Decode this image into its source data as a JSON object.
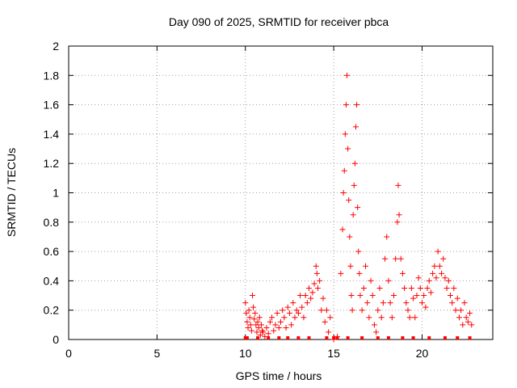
{
  "chart_data": {
    "type": "scatter",
    "title": "Day 090 of 2025, SRMTID for receiver pbca",
    "xlabel": "GPS time / hours",
    "ylabel": "SRMTID / TECUs",
    "xlim": [
      0,
      24
    ],
    "ylim": [
      0,
      2
    ],
    "xticks": [
      "0",
      "5",
      "10",
      "15",
      "20"
    ],
    "yticks": [
      "0",
      "0.2",
      "0.4",
      "0.6",
      "0.8",
      "1",
      "1.2",
      "1.4",
      "1.6",
      "1.8",
      "2"
    ],
    "grid": true,
    "marker": "+",
    "color": "#ff0000",
    "series": [
      {
        "name": "pbca",
        "points": [
          [
            10.0,
            0.25
          ],
          [
            10.05,
            0.18
          ],
          [
            10.1,
            0.12
          ],
          [
            10.15,
            0.08
          ],
          [
            10.2,
            0.2
          ],
          [
            10.25,
            0.15
          ],
          [
            10.3,
            0.1
          ],
          [
            10.35,
            0.06
          ],
          [
            10.4,
            0.3
          ],
          [
            10.45,
            0.22
          ],
          [
            10.5,
            0.14
          ],
          [
            10.55,
            0.18
          ],
          [
            10.6,
            0.1
          ],
          [
            10.65,
            0.05
          ],
          [
            10.7,
            0.12
          ],
          [
            10.75,
            0.08
          ],
          [
            10.8,
            0.15
          ],
          [
            10.85,
            0.03
          ],
          [
            10.9,
            0.1
          ],
          [
            10.95,
            0.06
          ],
          [
            11.0,
            0.05
          ],
          [
            11.1,
            0.02
          ],
          [
            11.2,
            0.08
          ],
          [
            11.3,
            0.04
          ],
          [
            11.4,
            0.12
          ],
          [
            11.5,
            0.15
          ],
          [
            11.6,
            0.06
          ],
          [
            11.7,
            0.1
          ],
          [
            11.8,
            0.18
          ],
          [
            11.9,
            0.08
          ],
          [
            12.0,
            0.12
          ],
          [
            12.1,
            0.2
          ],
          [
            12.2,
            0.15
          ],
          [
            12.3,
            0.08
          ],
          [
            12.4,
            0.22
          ],
          [
            12.5,
            0.18
          ],
          [
            12.6,
            0.1
          ],
          [
            12.7,
            0.25
          ],
          [
            12.8,
            0.15
          ],
          [
            12.9,
            0.2
          ],
          [
            13.0,
            0.18
          ],
          [
            13.1,
            0.3
          ],
          [
            13.2,
            0.22
          ],
          [
            13.3,
            0.15
          ],
          [
            13.4,
            0.3
          ],
          [
            13.5,
            0.25
          ],
          [
            13.6,
            0.35
          ],
          [
            13.7,
            0.28
          ],
          [
            13.8,
            0.32
          ],
          [
            13.9,
            0.38
          ],
          [
            14.0,
            0.5
          ],
          [
            14.05,
            0.45
          ],
          [
            14.1,
            0.35
          ],
          [
            14.2,
            0.4
          ],
          [
            14.3,
            0.2
          ],
          [
            14.4,
            0.28
          ],
          [
            14.5,
            0.12
          ],
          [
            14.6,
            0.2
          ],
          [
            14.7,
            0.05
          ],
          [
            14.8,
            0.15
          ],
          [
            15.0,
            0.0
          ],
          [
            15.2,
            0.02
          ],
          [
            15.4,
            0.45
          ],
          [
            15.5,
            0.75
          ],
          [
            15.55,
            1.0
          ],
          [
            15.6,
            1.15
          ],
          [
            15.65,
            1.4
          ],
          [
            15.7,
            1.6
          ],
          [
            15.75,
            1.8
          ],
          [
            15.8,
            1.3
          ],
          [
            15.85,
            0.95
          ],
          [
            15.9,
            0.7
          ],
          [
            15.95,
            0.5
          ],
          [
            16.0,
            0.3
          ],
          [
            16.05,
            0.2
          ],
          [
            16.1,
            0.85
          ],
          [
            16.15,
            1.05
          ],
          [
            16.2,
            1.2
          ],
          [
            16.25,
            1.45
          ],
          [
            16.3,
            1.6
          ],
          [
            16.35,
            0.9
          ],
          [
            16.4,
            0.6
          ],
          [
            16.45,
            0.45
          ],
          [
            16.5,
            0.3
          ],
          [
            16.6,
            0.2
          ],
          [
            16.7,
            0.35
          ],
          [
            16.8,
            0.5
          ],
          [
            16.9,
            0.25
          ],
          [
            17.0,
            0.15
          ],
          [
            17.1,
            0.4
          ],
          [
            17.2,
            0.3
          ],
          [
            17.3,
            0.1
          ],
          [
            17.4,
            0.05
          ],
          [
            17.5,
            0.2
          ],
          [
            17.6,
            0.35
          ],
          [
            17.7,
            0.15
          ],
          [
            17.8,
            0.25
          ],
          [
            17.9,
            0.55
          ],
          [
            18.0,
            0.7
          ],
          [
            18.1,
            0.4
          ],
          [
            18.2,
            0.25
          ],
          [
            18.3,
            0.15
          ],
          [
            18.4,
            0.3
          ],
          [
            18.5,
            0.55
          ],
          [
            18.6,
            0.8
          ],
          [
            18.65,
            1.05
          ],
          [
            18.7,
            0.85
          ],
          [
            18.8,
            0.55
          ],
          [
            18.9,
            0.45
          ],
          [
            19.0,
            0.35
          ],
          [
            19.1,
            0.25
          ],
          [
            19.2,
            0.2
          ],
          [
            19.3,
            0.15
          ],
          [
            19.4,
            0.35
          ],
          [
            19.5,
            0.28
          ],
          [
            19.6,
            0.15
          ],
          [
            19.7,
            0.3
          ],
          [
            19.8,
            0.42
          ],
          [
            19.9,
            0.35
          ],
          [
            20.0,
            0.25
          ],
          [
            20.1,
            0.3
          ],
          [
            20.2,
            0.22
          ],
          [
            20.3,
            0.35
          ],
          [
            20.4,
            0.4
          ],
          [
            20.5,
            0.32
          ],
          [
            20.6,
            0.45
          ],
          [
            20.7,
            0.5
          ],
          [
            20.8,
            0.42
          ],
          [
            20.9,
            0.6
          ],
          [
            21.0,
            0.5
          ],
          [
            21.1,
            0.45
          ],
          [
            21.2,
            0.55
          ],
          [
            21.3,
            0.42
          ],
          [
            21.4,
            0.35
          ],
          [
            21.5,
            0.4
          ],
          [
            21.6,
            0.3
          ],
          [
            21.7,
            0.25
          ],
          [
            21.8,
            0.35
          ],
          [
            21.9,
            0.2
          ],
          [
            22.0,
            0.28
          ],
          [
            22.1,
            0.15
          ],
          [
            22.2,
            0.2
          ],
          [
            22.3,
            0.1
          ],
          [
            22.4,
            0.25
          ],
          [
            22.5,
            0.15
          ],
          [
            22.6,
            0.12
          ],
          [
            22.7,
            0.18
          ],
          [
            22.8,
            0.1
          ]
        ]
      }
    ],
    "baseline_squares": [
      10.0,
      10.1,
      10.7,
      11.3,
      11.9,
      12.4,
      13.0,
      13.6,
      14.6,
      15.0,
      15.2,
      15.8,
      16.6,
      17.5,
      18.1,
      18.9,
      19.5,
      20.4,
      21.3,
      22.0,
      22.7
    ]
  }
}
